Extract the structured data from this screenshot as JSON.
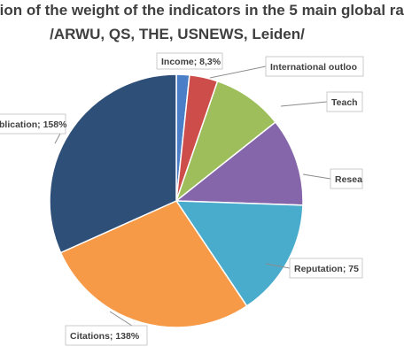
{
  "chart_data": {
    "type": "pie",
    "title_lines": [
      "tion of the weight of the indicators in the 5 main global ra",
      "/ARWU, QS, THE, USNEWS, Leiden/"
    ],
    "slices": [
      {
        "label": "Income; 8,3%",
        "value": 8.3,
        "color": "#4a7ec6"
      },
      {
        "label": "International outloo",
        "value": 18,
        "color": "#cc4d4a"
      },
      {
        "label": "Teach",
        "value": 45,
        "color": "#9dbe5a"
      },
      {
        "label": "Resea",
        "value": 56,
        "color": "#8566aa"
      },
      {
        "label": "Reputation; 75",
        "value": 75,
        "color": "#4aaccc"
      },
      {
        "label": "Citations; 138%",
        "value": 138,
        "color": "#f69a47"
      },
      {
        "label": "blication; 158%",
        "value": 158,
        "color": "#2e4f78"
      }
    ],
    "legend": "none"
  }
}
